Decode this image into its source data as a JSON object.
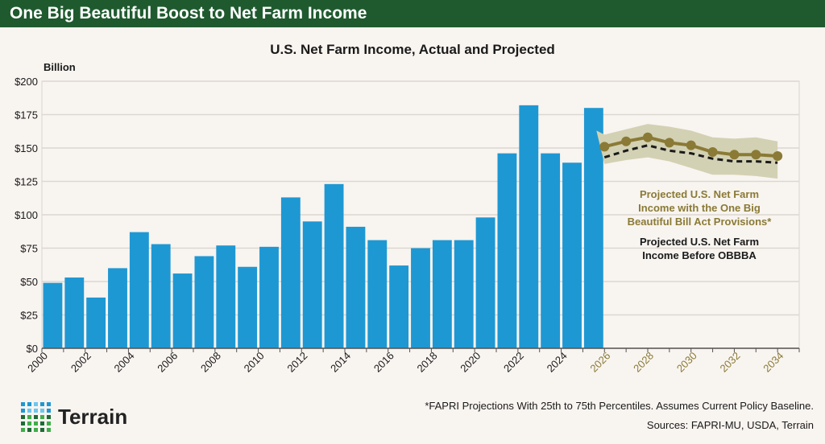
{
  "header": {
    "title": "One Big Beautiful Boost to Net Farm Income"
  },
  "footer": {
    "note": "*FAPRI Projections With 25th to 75th Percentiles. Assumes Current Policy Baseline.",
    "sources": "Sources: FAPRI-MU, USDA, Terrain",
    "logo": "Terrain"
  },
  "colors": {
    "header": "#1f5a2f",
    "bar": "#1e98d3",
    "projected": "#8a7a35",
    "band": "#d3d1b3",
    "before": "#1a1a1a"
  },
  "chart_data": {
    "type": "bar",
    "title": "U.S. Net Farm Income, Actual and Projected",
    "ylabel": "Billion",
    "ylim": [
      0,
      200
    ],
    "yticks": [
      "$0",
      "$25",
      "$50",
      "$75",
      "$100",
      "$125",
      "$150",
      "$175",
      "$200"
    ],
    "xlim": [
      2000,
      2034
    ],
    "xticks": [
      "2000",
      "2002",
      "2004",
      "2006",
      "2008",
      "2010",
      "2012",
      "2014",
      "2016",
      "2018",
      "2020",
      "2022",
      "2024",
      "2026",
      "2028",
      "2030",
      "2032",
      "2034"
    ],
    "actual": {
      "years": [
        2000,
        2001,
        2002,
        2003,
        2004,
        2005,
        2006,
        2007,
        2008,
        2009,
        2010,
        2011,
        2012,
        2013,
        2014,
        2015,
        2016,
        2017,
        2018,
        2019,
        2020,
        2021,
        2022,
        2023,
        2024,
        2025
      ],
      "values": [
        49,
        53,
        38,
        60,
        87,
        78,
        56,
        69,
        77,
        61,
        76,
        113,
        95,
        123,
        91,
        81,
        62,
        75,
        81,
        81,
        98,
        146,
        182,
        146,
        139,
        180
      ]
    },
    "projected_years": [
      2026,
      2027,
      2028,
      2029,
      2030,
      2031,
      2032,
      2033,
      2034
    ],
    "series": [
      {
        "name": "Projected U.S. Net Farm Income with the One Big Beautiful Bill Act Provisions*",
        "values": [
          151,
          155,
          158,
          154,
          152,
          147,
          145,
          145,
          144
        ]
      },
      {
        "name": "Projected U.S. Net Farm Income Before OBBBA",
        "values": [
          143,
          148,
          152,
          148,
          146,
          142,
          140,
          140,
          139
        ]
      }
    ],
    "band": {
      "name": "25th to 75th Percentiles",
      "upper": [
        160,
        164,
        168,
        166,
        163,
        158,
        157,
        158,
        155
      ],
      "lower": [
        138,
        141,
        143,
        140,
        135,
        130,
        130,
        129,
        127
      ]
    },
    "annotations": {
      "obbba": [
        "Projected U.S. Net Farm",
        "Income with the One Big",
        "Beautiful Bill Act Provisions*"
      ],
      "before": [
        "Projected U.S. Net Farm",
        "Income Before OBBBA"
      ]
    }
  }
}
